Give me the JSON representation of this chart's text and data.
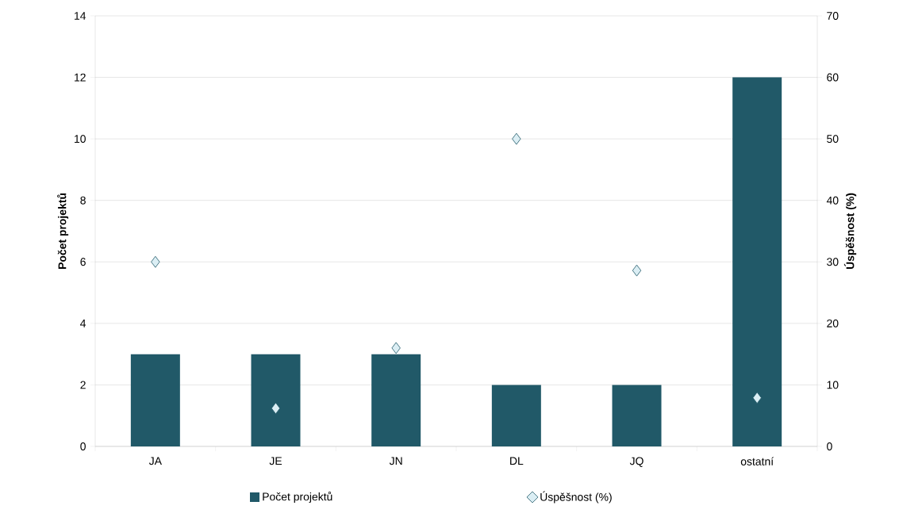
{
  "chart_data": {
    "type": "bar",
    "ylabel": "Počet projektů",
    "y2label": "Úspěšnost (%)",
    "categories": [
      "JA",
      "JE",
      "JN",
      "DL",
      "JQ",
      "ostatní"
    ],
    "series": [
      {
        "name": "Počet projektů",
        "color": "#215968",
        "values": [
          3,
          3,
          3,
          2,
          2,
          12
        ]
      },
      {
        "name": "Úspěšnost (%)",
        "type": "scatter",
        "axis": "y2",
        "color": "#dbeef4",
        "values": [
          30,
          6.2,
          16,
          50,
          28.6,
          7.9
        ]
      }
    ],
    "ylim": [
      0,
      14
    ],
    "yticks": [
      0,
      2,
      4,
      6,
      8,
      10,
      12,
      14
    ],
    "y2lim": [
      0,
      70
    ],
    "y2ticks": [
      0,
      10,
      20,
      30,
      40,
      50,
      60,
      70
    ],
    "grid": "y",
    "legend": "bottom",
    "marker": "diamond"
  }
}
